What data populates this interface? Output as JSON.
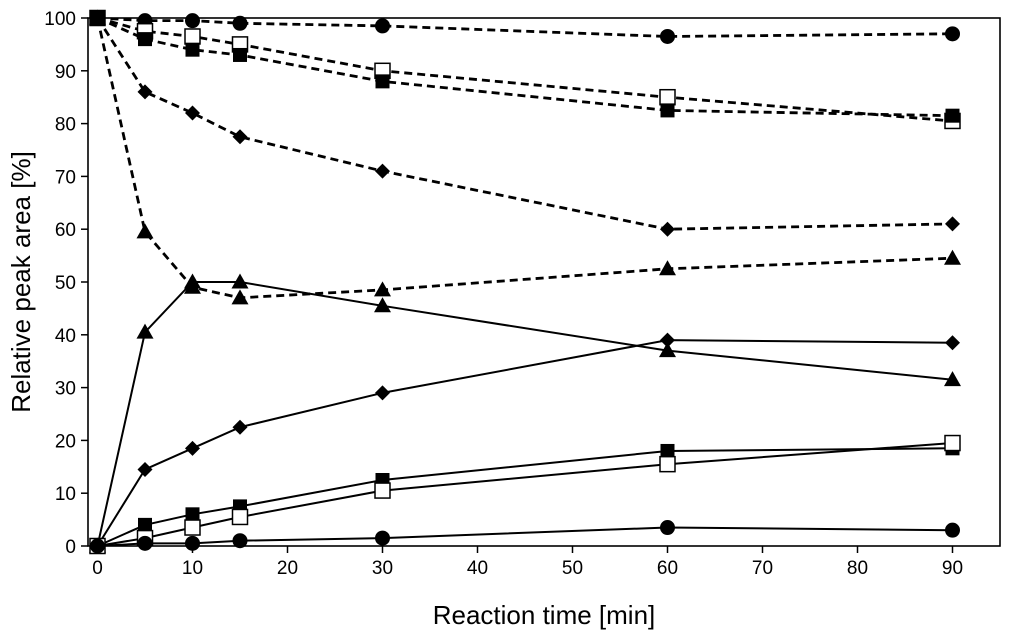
{
  "chart_data": {
    "type": "line",
    "title": "",
    "xlabel": "Reaction time [min]",
    "ylabel": "Relative peak area [%]",
    "xlim": [
      -1,
      95
    ],
    "ylim": [
      0,
      100
    ],
    "xticks": [
      0,
      10,
      20,
      30,
      40,
      50,
      60,
      70,
      80,
      90
    ],
    "yticks": [
      0,
      10,
      20,
      30,
      40,
      50,
      60,
      70,
      80,
      90,
      100
    ],
    "grid": false,
    "x": [
      0,
      5,
      10,
      15,
      30,
      60,
      90
    ],
    "series": [
      {
        "name": "circle-dashed",
        "marker": "circle",
        "line": "dashed",
        "values": [
          100,
          99.5,
          99.5,
          99,
          98.5,
          96.5,
          97
        ]
      },
      {
        "name": "open-square-dashed",
        "marker": "open-square",
        "line": "dashed",
        "values": [
          100,
          97.5,
          96.5,
          95,
          90,
          85,
          80.5
        ]
      },
      {
        "name": "square-dashed",
        "marker": "square",
        "line": "dashed",
        "values": [
          100,
          96,
          94,
          93,
          88,
          82.5,
          81.5
        ]
      },
      {
        "name": "diamond-dashed",
        "marker": "diamond",
        "line": "dashed",
        "values": [
          100,
          86,
          82,
          77.5,
          71,
          60,
          61
        ]
      },
      {
        "name": "triangle-dashed",
        "marker": "triangle",
        "line": "dashed",
        "values": [
          100,
          59.5,
          49,
          47,
          48.5,
          52.5,
          54.5
        ]
      },
      {
        "name": "triangle-solid",
        "marker": "triangle",
        "line": "solid",
        "values": [
          0,
          40.5,
          50,
          50,
          45.5,
          37,
          31.5
        ]
      },
      {
        "name": "diamond-solid",
        "marker": "diamond",
        "line": "solid",
        "values": [
          0,
          14.5,
          18.5,
          22.5,
          29,
          39,
          38.5
        ]
      },
      {
        "name": "square-solid",
        "marker": "square",
        "line": "solid",
        "values": [
          0,
          4,
          6,
          7.5,
          12.5,
          18,
          18.5
        ]
      },
      {
        "name": "open-square-solid",
        "marker": "open-square",
        "line": "solid",
        "values": [
          0,
          1.5,
          3.5,
          5.5,
          10.5,
          15.5,
          19.5
        ]
      },
      {
        "name": "circle-solid",
        "marker": "circle",
        "line": "solid",
        "values": [
          0,
          0.5,
          0.5,
          1,
          1.5,
          3.5,
          3
        ]
      }
    ]
  }
}
